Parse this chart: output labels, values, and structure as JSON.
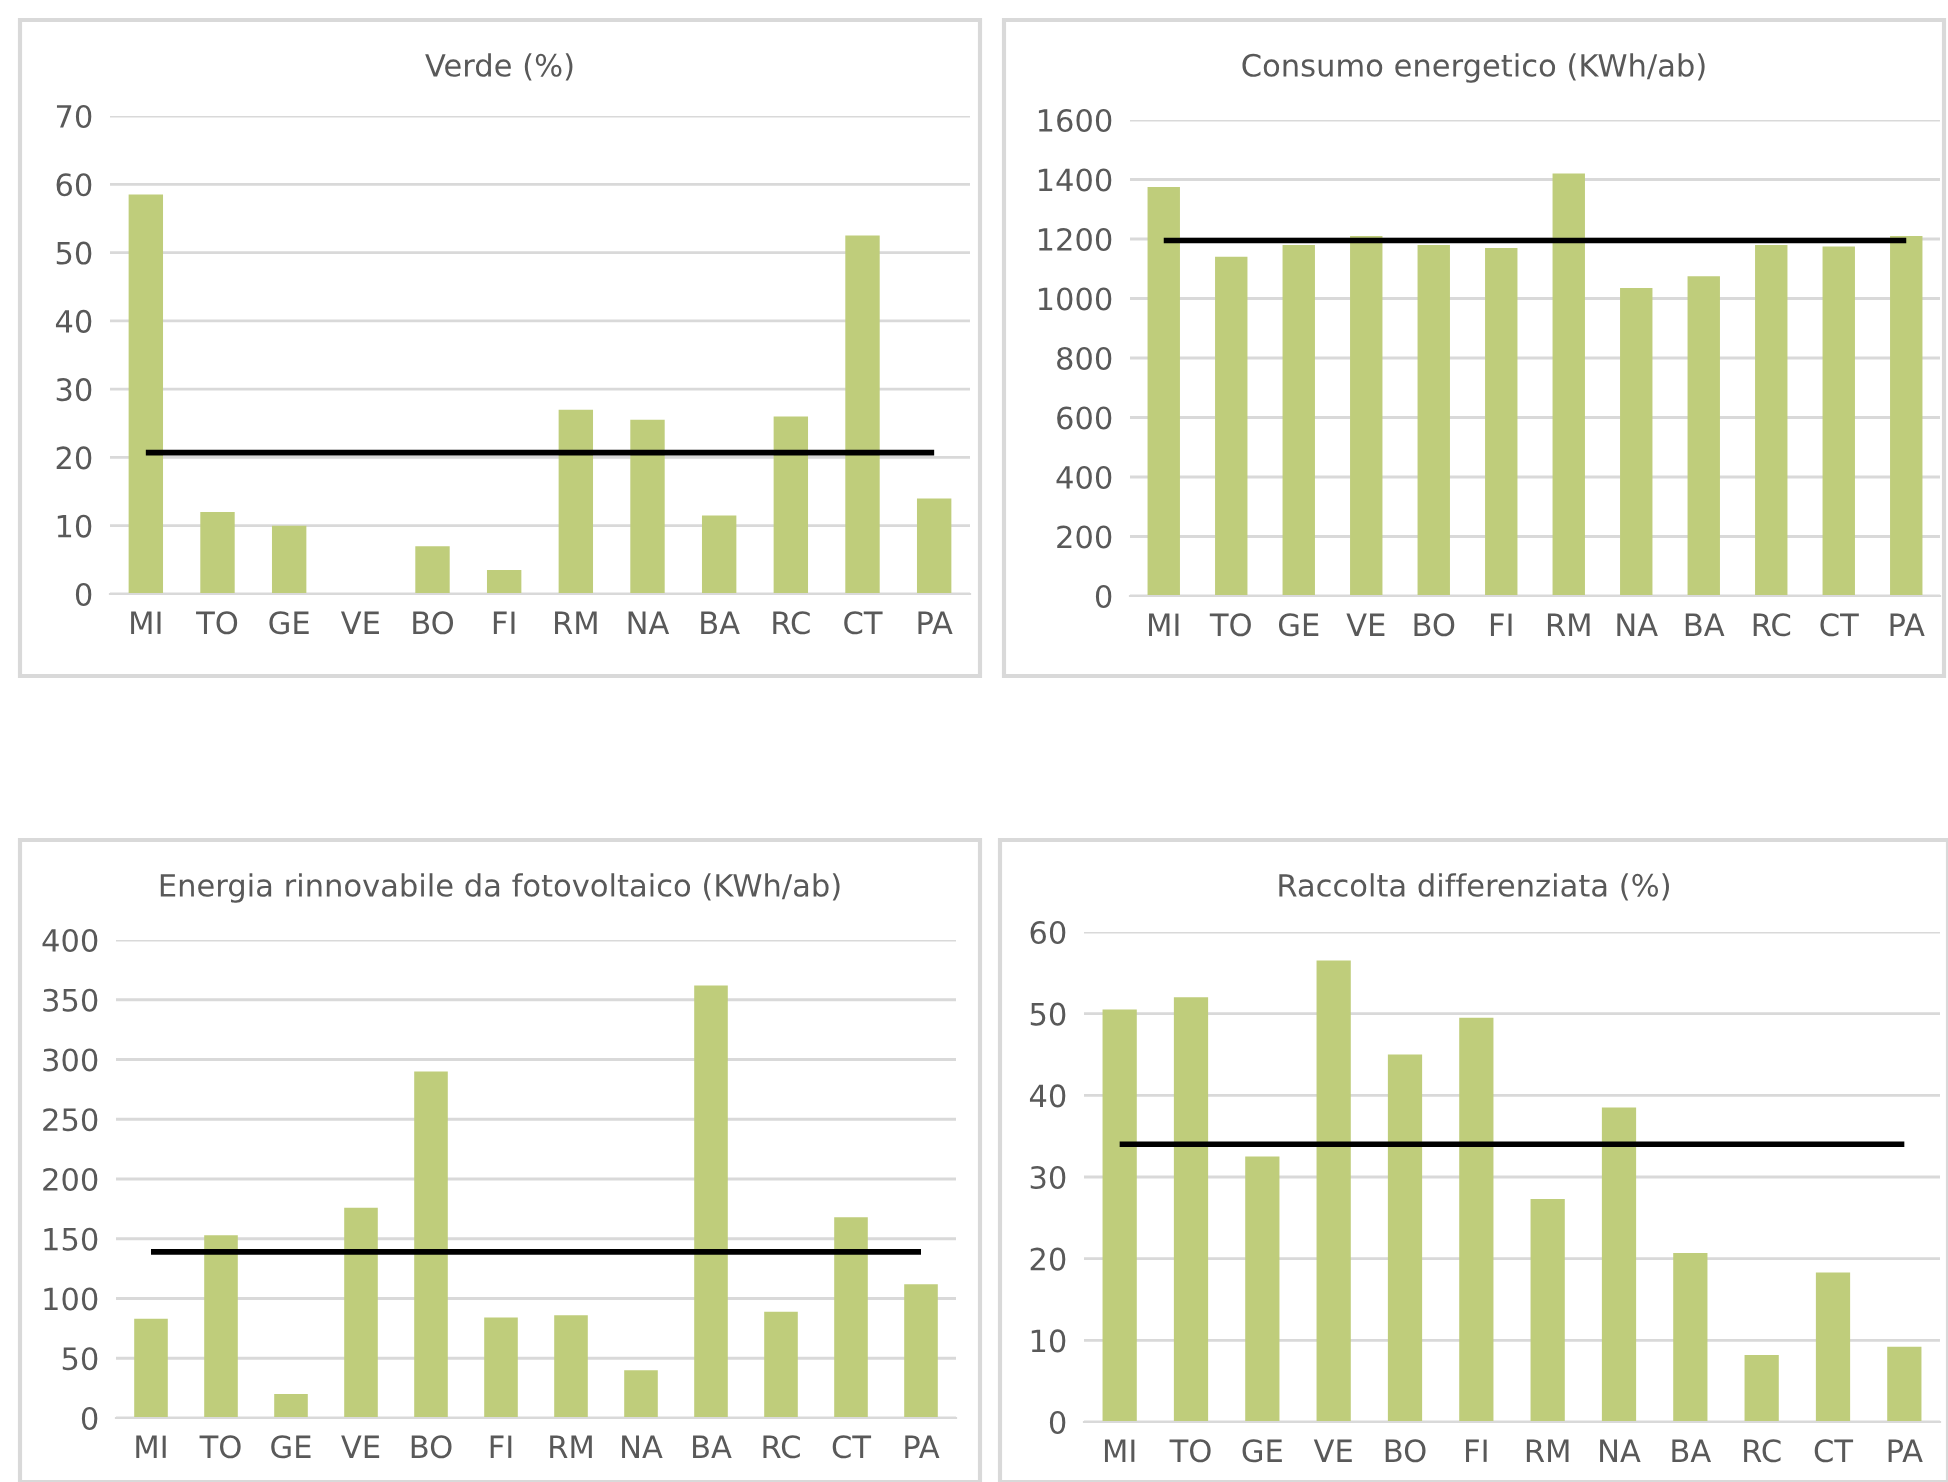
{
  "chart_data": [
    {
      "type": "bar",
      "title": "Verde (%)",
      "categories": [
        "MI",
        "TO",
        "GE",
        "VE",
        "BO",
        "FI",
        "RM",
        "NA",
        "BA",
        "RC",
        "CT",
        "PA"
      ],
      "values": [
        58.5,
        12,
        10,
        0,
        7,
        3.5,
        27,
        25.5,
        11.5,
        26,
        52.5,
        14
      ],
      "color": "#bfcd7b",
      "ylim": [
        0,
        70
      ],
      "yticks": [
        0,
        10,
        20,
        30,
        40,
        50,
        60,
        70
      ],
      "grid": "y",
      "ref_lines": [
        {
          "axis": "y",
          "value": 20.7,
          "color": "#000000"
        }
      ]
    },
    {
      "type": "bar",
      "title": "Consumo energetico (KWh/ab)",
      "categories": [
        "MI",
        "TO",
        "GE",
        "VE",
        "BO",
        "FI",
        "RM",
        "NA",
        "BA",
        "RC",
        "CT",
        "PA"
      ],
      "values": [
        1375,
        1140,
        1180,
        1210,
        1180,
        1170,
        1420,
        1035,
        1075,
        1180,
        1175,
        1210
      ],
      "color": "#bfcd7b",
      "ylim": [
        0,
        1600
      ],
      "yticks": [
        0,
        200,
        400,
        600,
        800,
        1000,
        1200,
        1400,
        1600
      ],
      "grid": "y",
      "ref_lines": [
        {
          "axis": "y",
          "value": 1195,
          "color": "#000000"
        }
      ]
    },
    {
      "type": "bar",
      "title": "Energia rinnovabile da fotovoltaico (KWh/ab)",
      "categories": [
        "MI",
        "TO",
        "GE",
        "VE",
        "BO",
        "FI",
        "RM",
        "NA",
        "BA",
        "RC",
        "CT",
        "PA"
      ],
      "values": [
        83,
        153,
        20,
        176,
        290,
        84,
        86,
        40,
        362,
        89,
        168,
        112
      ],
      "color": "#bfcd7b",
      "ylim": [
        0,
        400
      ],
      "yticks": [
        0,
        50,
        100,
        150,
        200,
        250,
        300,
        350,
        400
      ],
      "grid": "y",
      "ref_lines": [
        {
          "axis": "y",
          "value": 139,
          "color": "#000000"
        }
      ]
    },
    {
      "type": "bar",
      "title": "Raccolta differenziata (%)",
      "categories": [
        "MI",
        "TO",
        "GE",
        "VE",
        "BO",
        "FI",
        "RM",
        "NA",
        "BA",
        "RC",
        "CT",
        "PA"
      ],
      "values": [
        50.5,
        52,
        32.5,
        56.5,
        45,
        49.5,
        27.3,
        38.5,
        20.7,
        8.2,
        18.3,
        9.2
      ],
      "color": "#bfcd7b",
      "ylim": [
        0,
        60
      ],
      "yticks": [
        0,
        10,
        20,
        30,
        40,
        50,
        60
      ],
      "grid": "y",
      "ref_lines": [
        {
          "axis": "y",
          "value": 34,
          "color": "#000000"
        }
      ]
    }
  ]
}
